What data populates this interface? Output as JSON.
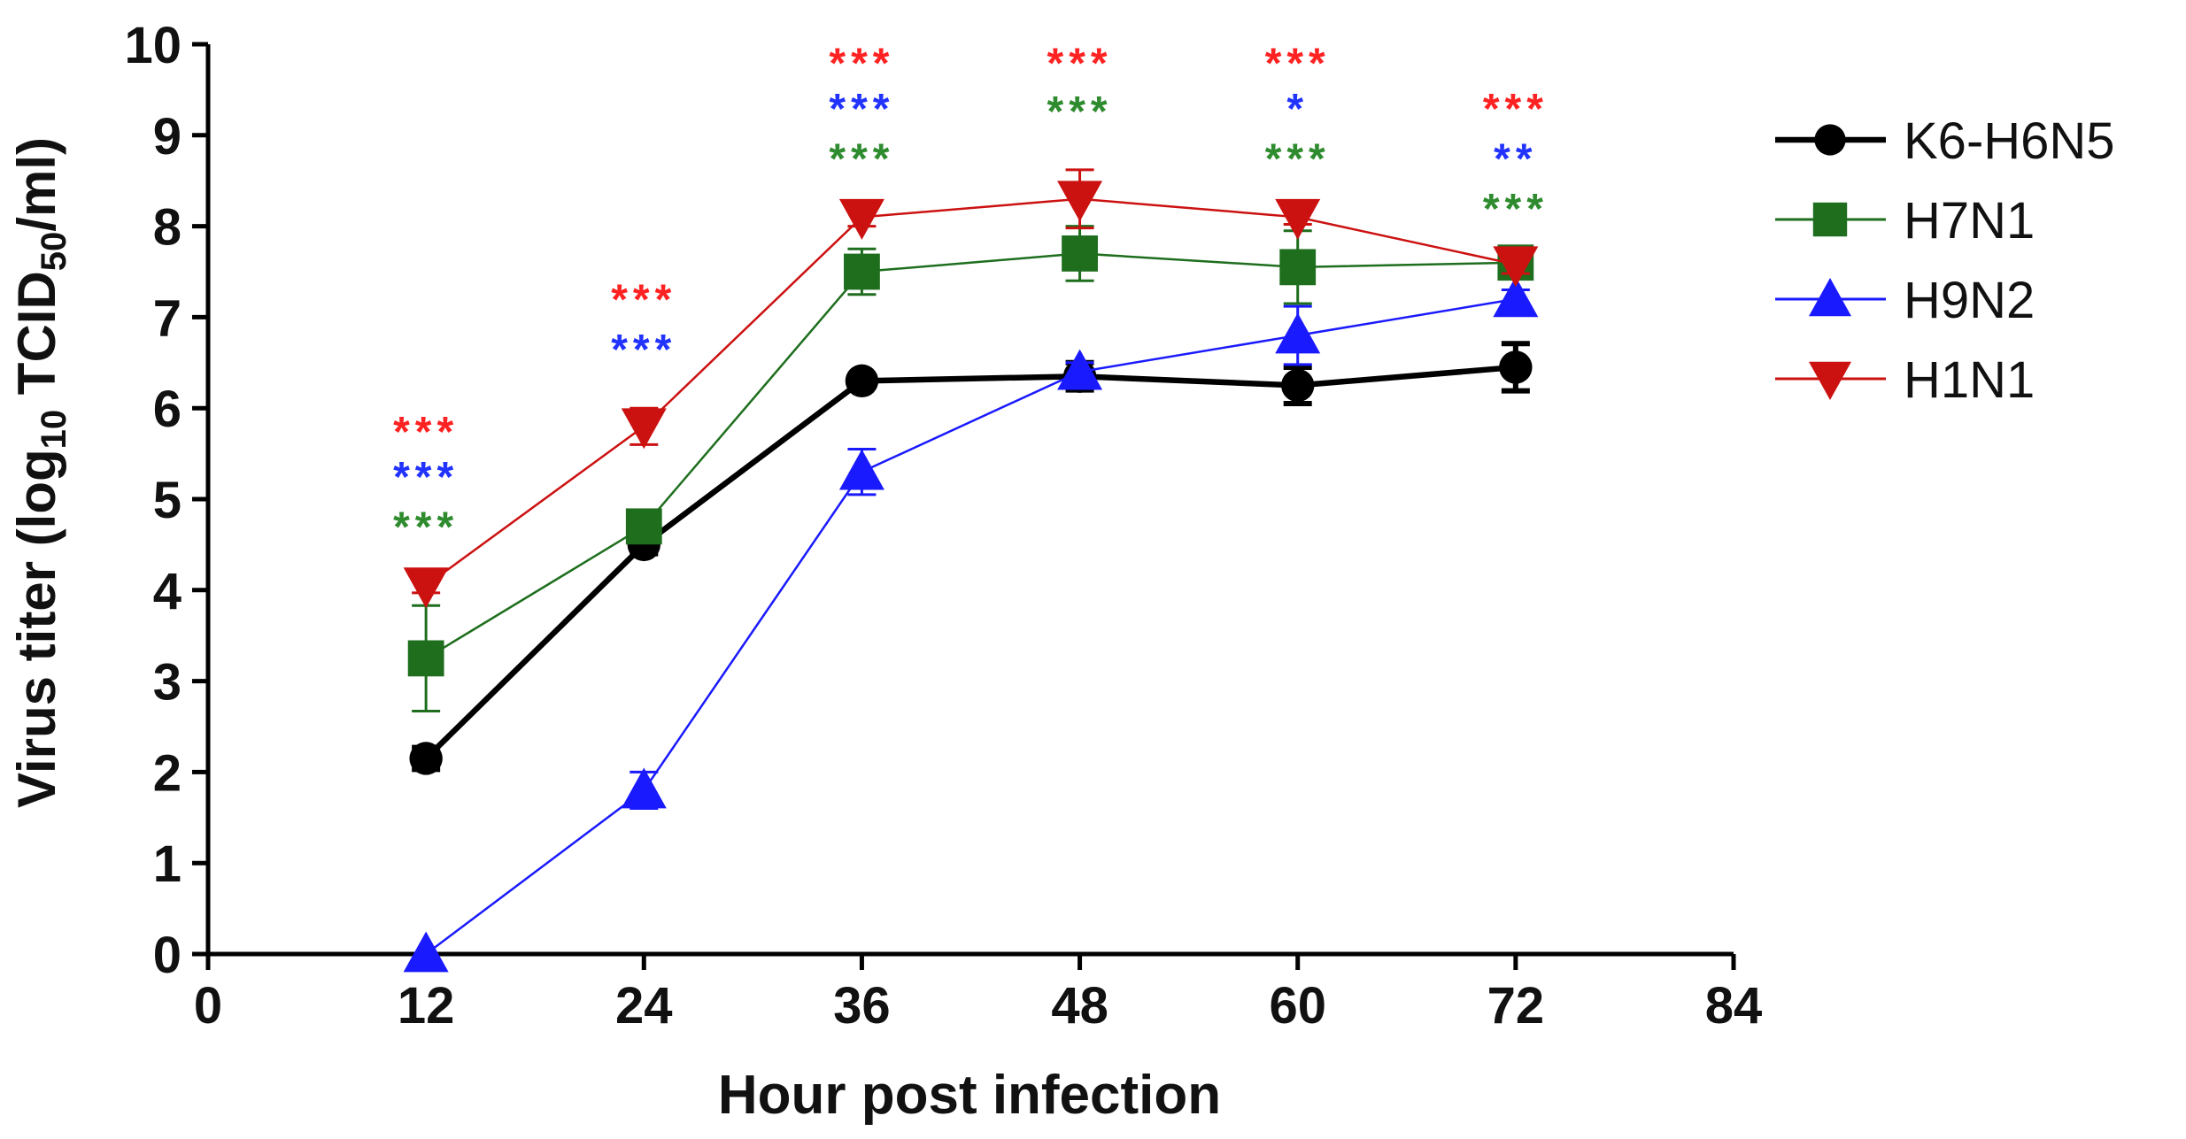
{
  "chart_data": {
    "type": "line",
    "xlabel": "Hour post infection",
    "ylabel": {
      "prefix": "Virus titer (log",
      "sub1": "10",
      "mid": " TCID",
      "sub2": "50",
      "suffix": "/ml)"
    },
    "xlim": [
      0,
      84
    ],
    "ylim": [
      0,
      10
    ],
    "xticks": [
      0,
      12,
      24,
      36,
      48,
      60,
      72,
      84
    ],
    "yticks": [
      0,
      1,
      2,
      3,
      4,
      5,
      6,
      7,
      8,
      9,
      10
    ],
    "x": [
      12,
      24,
      36,
      48,
      60,
      72
    ],
    "series": [
      {
        "name": "K6-H6N5",
        "color": "#000000",
        "marker": "circle",
        "values": [
          2.15,
          4.5,
          6.3,
          6.35,
          6.25,
          6.45
        ],
        "errors": [
          0.12,
          0.1,
          0.06,
          0.15,
          0.2,
          0.26
        ]
      },
      {
        "name": "H7N1",
        "color": "#1e6e1e",
        "marker": "square",
        "values": [
          3.25,
          4.7,
          7.5,
          7.7,
          7.55,
          7.6
        ],
        "errors": [
          0.58,
          0.15,
          0.25,
          0.3,
          0.4,
          0.1
        ]
      },
      {
        "name": "H9N2",
        "color": "#1a1aff",
        "marker": "triangle-up",
        "values": [
          0.0,
          1.8,
          5.3,
          6.4,
          6.8,
          7.2
        ],
        "errors": [
          0.0,
          0.2,
          0.25,
          0.1,
          0.32,
          0.1
        ]
      },
      {
        "name": "H1N1",
        "color": "#cc1111",
        "marker": "triangle-down",
        "values": [
          4.05,
          5.8,
          8.1,
          8.3,
          8.1,
          7.58
        ],
        "errors": [
          0.08,
          0.2,
          0.1,
          0.32,
          0.08,
          0.1
        ]
      }
    ],
    "annotations": [
      {
        "x": 12,
        "text": "***",
        "color": "#ff2222",
        "y_level": 5.8
      },
      {
        "x": 12,
        "text": "***",
        "color": "#2233ff",
        "y_level": 5.3
      },
      {
        "x": 12,
        "text": "***",
        "color": "#2e8b2e",
        "y_level": 4.75
      },
      {
        "x": 24,
        "text": "***",
        "color": "#ff2222",
        "y_level": 7.25
      },
      {
        "x": 24,
        "text": "***",
        "color": "#2233ff",
        "y_level": 6.7
      },
      {
        "x": 36,
        "text": "***",
        "color": "#ff2222",
        "y_level": 9.85
      },
      {
        "x": 36,
        "text": "***",
        "color": "#2233ff",
        "y_level": 9.35
      },
      {
        "x": 36,
        "text": "***",
        "color": "#2e8b2e",
        "y_level": 8.8
      },
      {
        "x": 48,
        "text": "***",
        "color": "#ff2222",
        "y_level": 9.85
      },
      {
        "x": 48,
        "text": "***",
        "color": "#2e8b2e",
        "y_level": 9.32
      },
      {
        "x": 60,
        "text": "***",
        "color": "#ff2222",
        "y_level": 9.85
      },
      {
        "x": 60,
        "text": "*",
        "color": "#2233ff",
        "y_level": 9.35
      },
      {
        "x": 60,
        "text": "***",
        "color": "#2e8b2e",
        "y_level": 8.8
      },
      {
        "x": 72,
        "text": "***",
        "color": "#ff2222",
        "y_level": 9.35
      },
      {
        "x": 72,
        "text": "**",
        "color": "#2233ff",
        "y_level": 8.8
      },
      {
        "x": 72,
        "text": "***",
        "color": "#2e8b2e",
        "y_level": 8.25
      }
    ],
    "legend": "right"
  }
}
